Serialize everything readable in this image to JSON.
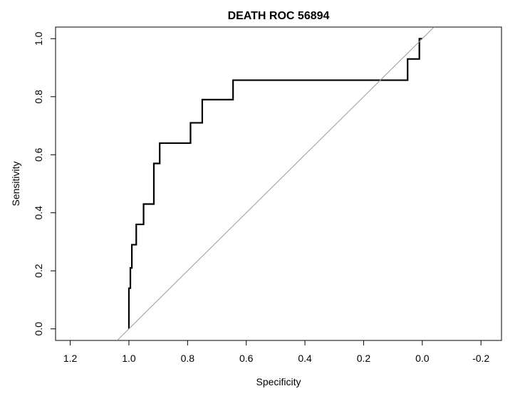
{
  "chart_data": {
    "type": "line",
    "title": "DEATH ROC  56894",
    "xlabel": "Specificity",
    "ylabel": "Sensitivity",
    "xlim": [
      1.25,
      -0.27
    ],
    "ylim": [
      -0.04,
      1.04
    ],
    "x_ticks": [
      1.2,
      1.0,
      0.8,
      0.6,
      0.4,
      0.2,
      0.0,
      -0.2
    ],
    "x_tick_labels": [
      "1.2",
      "1.0",
      "0.8",
      "0.6",
      "0.4",
      "0.2",
      "0.0",
      "-0.2"
    ],
    "y_ticks": [
      0.0,
      0.2,
      0.4,
      0.6,
      0.8,
      1.0
    ],
    "y_tick_labels": [
      "0.0",
      "0.2",
      "0.4",
      "0.6",
      "0.8",
      "1.0"
    ],
    "grid": false,
    "series": [
      {
        "kind": "roc-curve",
        "color": "#000000",
        "specificity": [
          1.0,
          1.0,
          0.995,
          0.995,
          0.99,
          0.99,
          0.975,
          0.975,
          0.95,
          0.95,
          0.915,
          0.915,
          0.895,
          0.895,
          0.79,
          0.79,
          0.75,
          0.75,
          0.645,
          0.645,
          0.05,
          0.05,
          0.01,
          0.01,
          0.0
        ],
        "sensitivity": [
          0.0,
          0.14,
          0.14,
          0.21,
          0.21,
          0.29,
          0.29,
          0.36,
          0.36,
          0.43,
          0.43,
          0.57,
          0.57,
          0.64,
          0.64,
          0.71,
          0.71,
          0.79,
          0.79,
          0.857,
          0.857,
          0.93,
          0.93,
          1.0,
          1.0
        ]
      },
      {
        "kind": "diagonal",
        "color": "#999999",
        "specificity": [
          1.05,
          -0.04
        ],
        "sensitivity": [
          -0.05,
          1.04
        ]
      }
    ]
  }
}
